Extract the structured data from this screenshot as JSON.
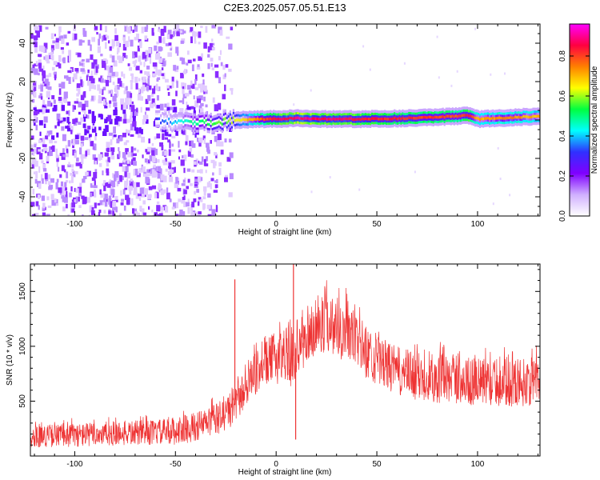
{
  "title": "C2E3.2025.057.05.51.E13",
  "colors": {
    "snr_line": "#ee3333",
    "cbar_stops": [
      "#ffffff",
      "#d0b0ff",
      "#8000ff",
      "#3030ff",
      "#00ffff",
      "#00ff40",
      "#ffff00",
      "#ff8000",
      "#ff0040",
      "#ff00ff"
    ]
  },
  "chart_data": [
    {
      "type": "heatmap",
      "name": "spectrogram",
      "xlabel": "Height of straight line (km)",
      "ylabel": "Frequency (Hz)",
      "xlim": [
        -122,
        131
      ],
      "ylim": [
        -50,
        50
      ],
      "xticks": [
        -100,
        -50,
        0,
        50,
        100
      ],
      "xtick_labels": [
        "-100",
        "-50",
        "0",
        "50",
        "100"
      ],
      "yticks": [
        -40,
        -20,
        0,
        20,
        40
      ],
      "ytick_labels": [
        "-40",
        "-20",
        "0",
        "20",
        "40"
      ],
      "colorbar": {
        "label": "Normalized spectral amplitude",
        "range": [
          0,
          0.96
        ],
        "ticks": [
          0.0,
          0.2,
          0.4,
          0.6,
          0.8
        ],
        "tick_labels": [
          "0.0",
          "0.2",
          "0.4",
          "0.6",
          "0.8"
        ]
      },
      "signal_track": {
        "x": [
          -60,
          -50,
          -40,
          -30,
          -20,
          -10,
          0,
          10,
          20,
          40,
          60,
          80,
          90,
          95,
          100,
          110,
          131
        ],
        "freq": [
          0,
          -1,
          -2,
          -1,
          0,
          0.5,
          0.5,
          1,
          0.5,
          0.5,
          0.8,
          1.5,
          2,
          2.5,
          0.5,
          1,
          2
        ],
        "amplitude": [
          0.3,
          0.4,
          0.5,
          0.55,
          0.62,
          0.75,
          0.85,
          0.9,
          0.88,
          0.85,
          0.82,
          0.8,
          0.78,
          0.85,
          0.7,
          0.75,
          0.7
        ]
      },
      "noise_extent_x": [
        -122,
        -20
      ]
    },
    {
      "type": "line",
      "name": "snr",
      "xlabel": "Height of straight line (km)",
      "ylabel": "SNR (10 * v/v)",
      "xlim": [
        -122,
        131
      ],
      "ylim": [
        0,
        1750
      ],
      "xticks": [
        -100,
        -50,
        0,
        50,
        100
      ],
      "xtick_labels": [
        "-100",
        "-50",
        "0",
        "50",
        "100"
      ],
      "yticks": [
        500,
        1000,
        1500
      ],
      "ytick_labels": [
        "500",
        "1000",
        "1500"
      ],
      "envelope": {
        "x": [
          -122,
          -100,
          -80,
          -60,
          -50,
          -40,
          -30,
          -25,
          -20,
          -15,
          -10,
          -5,
          0,
          5,
          8,
          10,
          15,
          20,
          25,
          30,
          35,
          40,
          45,
          50,
          60,
          70,
          80,
          90,
          100,
          110,
          120,
          131
        ],
        "low": [
          80,
          80,
          90,
          100,
          100,
          130,
          180,
          220,
          300,
          450,
          550,
          650,
          650,
          700,
          600,
          750,
          800,
          900,
          950,
          900,
          850,
          800,
          700,
          650,
          550,
          500,
          480,
          470,
          450,
          450,
          450,
          450
        ],
        "high": [
          280,
          300,
          320,
          330,
          350,
          400,
          480,
          550,
          650,
          800,
          950,
          1050,
          1150,
          1200,
          1150,
          1250,
          1300,
          1400,
          1500,
          1480,
          1400,
          1300,
          1200,
          1100,
          1000,
          950,
          950,
          900,
          900,
          880,
          900,
          900
        ]
      },
      "spikes": [
        {
          "x": -20.5,
          "y": 1610
        },
        {
          "x": 8.6,
          "y": 1750
        },
        {
          "x": 9.7,
          "y": 150
        }
      ]
    }
  ]
}
